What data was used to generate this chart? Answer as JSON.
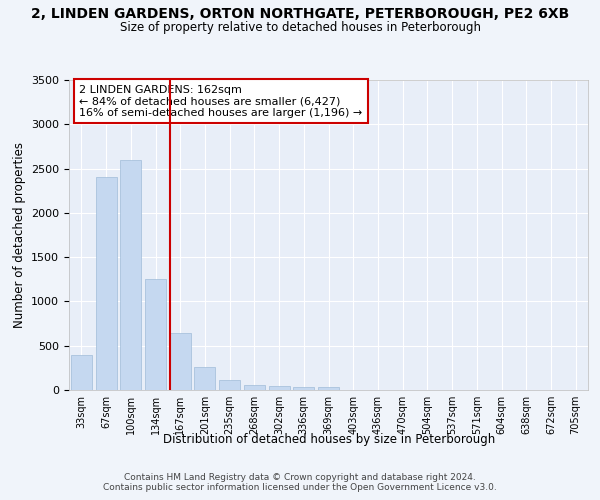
{
  "title_line1": "2, LINDEN GARDENS, ORTON NORTHGATE, PETERBOROUGH, PE2 6XB",
  "title_line2": "Size of property relative to detached houses in Peterborough",
  "xlabel": "Distribution of detached houses by size in Peterborough",
  "ylabel": "Number of detached properties",
  "categories": [
    "33sqm",
    "67sqm",
    "100sqm",
    "134sqm",
    "167sqm",
    "201sqm",
    "235sqm",
    "268sqm",
    "302sqm",
    "336sqm",
    "369sqm",
    "403sqm",
    "436sqm",
    "470sqm",
    "504sqm",
    "537sqm",
    "571sqm",
    "604sqm",
    "638sqm",
    "672sqm",
    "705sqm"
  ],
  "values": [
    400,
    2400,
    2600,
    1250,
    640,
    255,
    108,
    55,
    47,
    35,
    30,
    0,
    0,
    0,
    0,
    0,
    0,
    0,
    0,
    0,
    0
  ],
  "bar_color": "#c5d8f0",
  "bar_edge_color": "#a0bcd8",
  "vline_color": "#cc0000",
  "vline_pos": 3.57,
  "ylim": [
    0,
    3500
  ],
  "yticks": [
    0,
    500,
    1000,
    1500,
    2000,
    2500,
    3000,
    3500
  ],
  "annotation_text": "2 LINDEN GARDENS: 162sqm\n← 84% of detached houses are smaller (6,427)\n16% of semi-detached houses are larger (1,196) →",
  "annotation_box_facecolor": "#ffffff",
  "annotation_box_edgecolor": "#cc0000",
  "background_color": "#f0f4fa",
  "plot_background": "#e8eef8",
  "footer_line1": "Contains HM Land Registry data © Crown copyright and database right 2024.",
  "footer_line2": "Contains public sector information licensed under the Open Government Licence v3.0."
}
